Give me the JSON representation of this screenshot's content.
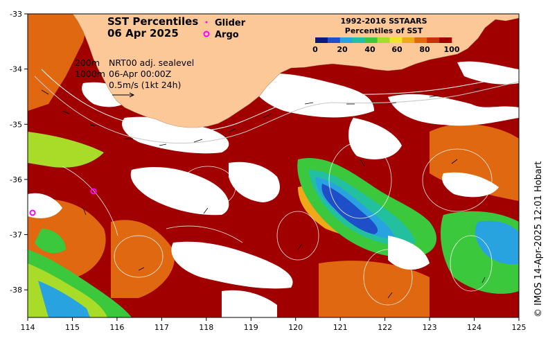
{
  "title": {
    "line1": "SST Percentiles",
    "line2": "06 Apr 2025"
  },
  "legend": {
    "glider": "Glider",
    "argo": "Argo"
  },
  "notes": {
    "depth1": "200m",
    "depth2": "1000m",
    "current": "NRT00 adj. sealevel",
    "time": "06-Apr 00:00Z",
    "scale": "0.5m/s (1kt 24h)"
  },
  "colorbar": {
    "title1": "1992-2016 SSTAARS",
    "title2": "Percentiles of SST",
    "labels": [
      "0",
      "20",
      "40",
      "60",
      "80",
      "100"
    ],
    "colors": [
      "#0a1a78",
      "#1f4fc8",
      "#29a3e0",
      "#23c0a0",
      "#3cc83c",
      "#a8dc28",
      "#f0e628",
      "#f0a818",
      "#e06810",
      "#c83008",
      "#a00000"
    ]
  },
  "colors": {
    "land": "#fcc898",
    "cloud": "#ffffff",
    "glider": "#ff00ff",
    "argo": "#ff00ff"
  },
  "axes": {
    "x_labels": [
      "114",
      "115",
      "116",
      "117",
      "118",
      "119",
      "120",
      "121",
      "122",
      "123",
      "124",
      "125"
    ],
    "y_labels": [
      "-33",
      "-34",
      "-35",
      "-36",
      "-37",
      "-38"
    ]
  },
  "credit": "© IMOS 14-Apr-2025 12:01 Hobart",
  "argo_floats": [
    {
      "lon": 114.1,
      "lat": -36.6
    },
    {
      "lon": 115.5,
      "lat": -36.2
    }
  ]
}
